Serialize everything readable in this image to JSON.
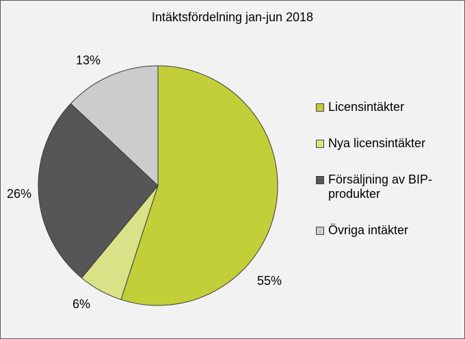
{
  "chart_data": {
    "type": "pie",
    "title": "Intäktsfördelning jan-jun 2018",
    "categories": [
      "Licensintäkter",
      "Nya licensintäkter",
      "Försäljning av BIP-produkter",
      "Övriga intäkter"
    ],
    "values": [
      55,
      6,
      26,
      13
    ],
    "value_labels": [
      "55%",
      "6%",
      "26%",
      "13%"
    ],
    "colors": [
      "#c2cf38",
      "#d9e286",
      "#565656",
      "#cccccc"
    ],
    "start_angle": "12 o'clock",
    "direction": "clockwise",
    "legend_position": "right",
    "legend": [
      {
        "line1": "Licensintäkter",
        "line2": ""
      },
      {
        "line1": "Nya licensintäkter",
        "line2": ""
      },
      {
        "line1": "Försäljning av BIP-",
        "line2": "produkter"
      },
      {
        "line1": "Övriga intäkter",
        "line2": ""
      }
    ]
  }
}
